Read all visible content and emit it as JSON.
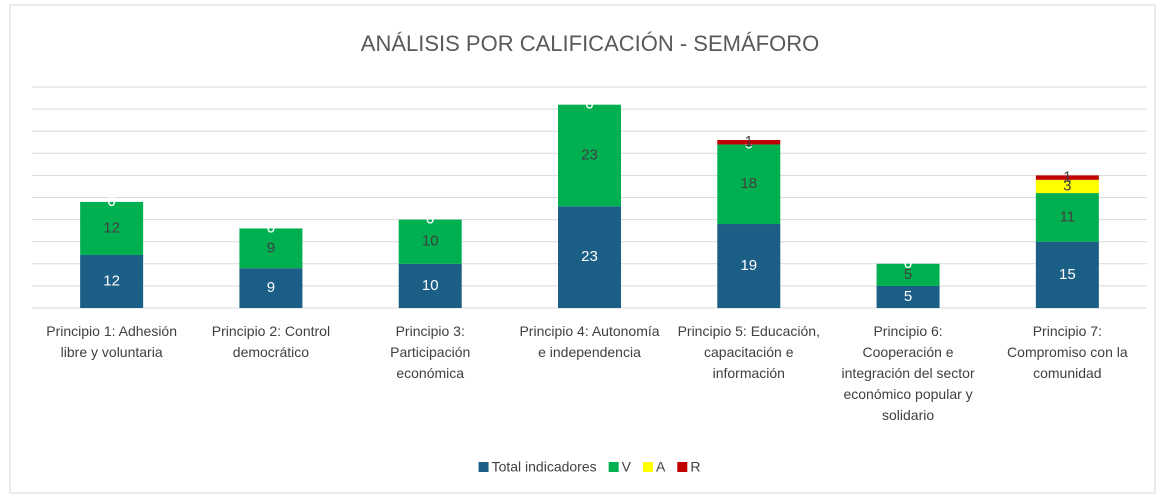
{
  "chart_data": {
    "type": "stacked_bar",
    "title": "ANÁLISIS POR CALIFICACIÓN - SEMÁFORO",
    "categories": [
      "Principio 1: Adhesión libre y voluntaria",
      "Principio 2: Control democrático",
      "Principio 3: Participación económica",
      "Principio 4: Autonomía e independencia",
      "Principio 5: Educación, capacitación e información",
      "Principio 6: Cooperación e integración del sector económico popular y solidario",
      "Principio 7: Compromiso con la comunidad"
    ],
    "series": [
      {
        "name": "Total indicadores",
        "color": "#1b5e86",
        "values": [
          12,
          9,
          10,
          23,
          19,
          5,
          15
        ]
      },
      {
        "name": "V",
        "color": "#00b050",
        "values": [
          12,
          9,
          10,
          23,
          18,
          5,
          11
        ]
      },
      {
        "name": "A",
        "color": "#ffff00",
        "values": [
          0,
          0,
          0,
          0,
          0,
          0,
          3
        ]
      },
      {
        "name": "R",
        "color": "#c00000",
        "values": [
          0,
          0,
          0,
          0,
          1,
          0,
          1
        ]
      }
    ],
    "ylim": [
      0,
      50
    ],
    "yticks": [
      0,
      5,
      10,
      15,
      20,
      25,
      30,
      35,
      40,
      45,
      50
    ],
    "grid": true,
    "legend": "bottom"
  }
}
